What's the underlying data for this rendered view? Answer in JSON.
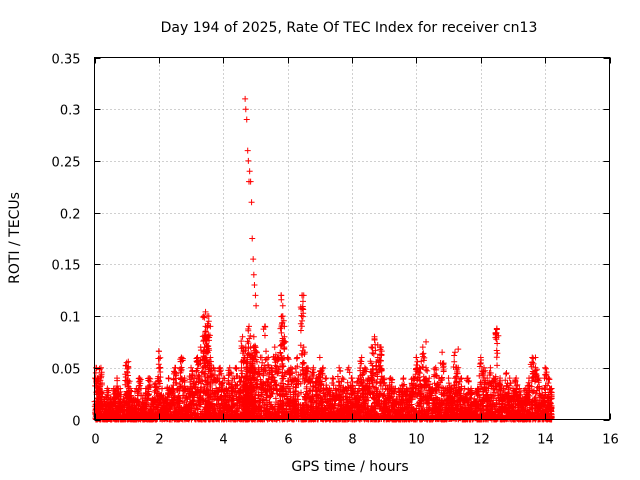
{
  "chart_data": {
    "type": "scatter",
    "title": "Day 194 of 2025, Rate Of TEC Index for receiver cn13",
    "xlabel": "GPS time / hours",
    "ylabel": "ROTI / TECUs",
    "xlim": [
      0,
      16
    ],
    "ylim": [
      0,
      0.35
    ],
    "xticks": [
      "0",
      "2",
      "4",
      "6",
      "8",
      "10",
      "12",
      "14",
      "16"
    ],
    "yticks": [
      "0",
      "0.05",
      "0.1",
      "0.15",
      "0.2",
      "0.25",
      "0.3",
      "0.35"
    ],
    "grid": true,
    "marker": "+",
    "color": "#ff0000",
    "series": [
      {
        "name": "ROTI",
        "x": [
          0.05,
          0.1,
          0.15,
          0.2,
          0.3,
          0.4,
          0.5,
          0.6,
          0.7,
          0.8,
          0.9,
          1.0,
          1.05,
          1.1,
          1.2,
          1.3,
          1.4,
          1.5,
          1.6,
          1.7,
          1.8,
          1.9,
          2.0,
          2.1,
          2.2,
          2.3,
          2.4,
          2.5,
          2.6,
          2.7,
          2.8,
          2.9,
          3.0,
          3.1,
          3.2,
          3.3,
          3.4,
          3.45,
          3.5,
          3.55,
          3.6,
          3.7,
          3.8,
          3.9,
          4.0,
          4.1,
          4.2,
          4.3,
          4.4,
          4.5,
          4.6,
          4.65,
          4.7,
          4.72,
          4.75,
          4.8,
          4.85,
          4.9,
          4.95,
          5.0,
          5.1,
          5.2,
          5.3,
          5.4,
          5.5,
          5.6,
          5.7,
          5.8,
          5.85,
          5.9,
          6.0,
          6.1,
          6.2,
          6.3,
          6.45,
          6.5,
          6.6,
          6.7,
          6.8,
          6.9,
          7.0,
          7.1,
          7.2,
          7.3,
          7.4,
          7.5,
          7.6,
          7.7,
          7.8,
          7.9,
          8.0,
          8.1,
          8.2,
          8.3,
          8.4,
          8.5,
          8.6,
          8.7,
          8.8,
          8.9,
          9.0,
          9.1,
          9.2,
          9.3,
          9.4,
          9.5,
          9.6,
          9.7,
          9.8,
          9.9,
          10.0,
          10.1,
          10.2,
          10.3,
          10.4,
          10.5,
          10.6,
          10.7,
          10.8,
          10.9,
          11.0,
          11.1,
          11.2,
          11.3,
          11.4,
          11.5,
          11.6,
          11.7,
          11.8,
          11.9,
          12.0,
          12.1,
          12.2,
          12.3,
          12.4,
          12.5,
          12.6,
          12.7,
          12.8,
          12.9,
          13.0,
          13.1,
          13.2,
          13.3,
          13.4,
          13.5,
          13.6,
          13.7,
          13.8,
          13.9,
          14.0,
          14.1,
          14.2,
          4.68,
          4.7,
          4.73,
          4.76,
          4.78,
          4.8,
          4.82,
          4.85,
          4.88,
          4.9,
          4.93,
          4.95,
          4.97,
          5.0,
          5.02,
          5.8,
          5.85,
          5.9,
          6.45,
          6.5,
          3.45,
          3.5,
          3.55,
          3.6,
          12.5,
          8.7,
          8.8,
          10.3,
          1.05,
          2.0,
          11.3,
          13.7
        ],
        "y": [
          0.05,
          0.04,
          0.03,
          0.05,
          0.02,
          0.03,
          0.02,
          0.03,
          0.04,
          0.03,
          0.02,
          0.055,
          0.05,
          0.03,
          0.02,
          0.03,
          0.04,
          0.02,
          0.03,
          0.04,
          0.02,
          0.035,
          0.066,
          0.03,
          0.02,
          0.04,
          0.03,
          0.05,
          0.03,
          0.06,
          0.04,
          0.03,
          0.05,
          0.04,
          0.06,
          0.07,
          0.1,
          0.09,
          0.08,
          0.1,
          0.06,
          0.05,
          0.04,
          0.05,
          0.04,
          0.03,
          0.05,
          0.04,
          0.05,
          0.04,
          0.08,
          0.06,
          0.07,
          0.05,
          0.06,
          0.09,
          0.07,
          0.06,
          0.08,
          0.07,
          0.05,
          0.06,
          0.09,
          0.06,
          0.05,
          0.07,
          0.06,
          0.12,
          0.1,
          0.08,
          0.06,
          0.05,
          0.04,
          0.06,
          0.12,
          0.07,
          0.05,
          0.04,
          0.05,
          0.04,
          0.06,
          0.05,
          0.04,
          0.03,
          0.04,
          0.03,
          0.05,
          0.04,
          0.03,
          0.05,
          0.04,
          0.03,
          0.04,
          0.06,
          0.05,
          0.04,
          0.07,
          0.08,
          0.06,
          0.07,
          0.04,
          0.03,
          0.04,
          0.03,
          0.02,
          0.03,
          0.04,
          0.03,
          0.03,
          0.04,
          0.06,
          0.05,
          0.07,
          0.05,
          0.04,
          0.03,
          0.05,
          0.04,
          0.065,
          0.03,
          0.04,
          0.03,
          0.065,
          0.05,
          0.04,
          0.03,
          0.04,
          0.03,
          0.02,
          0.03,
          0.06,
          0.05,
          0.04,
          0.05,
          0.04,
          0.088,
          0.04,
          0.03,
          0.045,
          0.04,
          0.03,
          0.04,
          0.03,
          0.02,
          0.03,
          0.04,
          0.06,
          0.05,
          0.04,
          0.03,
          0.05,
          0.04,
          0.03,
          0.31,
          0.3,
          0.29,
          0.26,
          0.25,
          0.23,
          0.24,
          0.23,
          0.21,
          0.175,
          0.155,
          0.14,
          0.13,
          0.12,
          0.11,
          0.12,
          0.11,
          0.09,
          0.12,
          0.12,
          0.104,
          0.1,
          0.095,
          0.09,
          0.087,
          0.078,
          0.072,
          0.075,
          0.056,
          0.066,
          0.068,
          0.06
        ]
      }
    ]
  }
}
